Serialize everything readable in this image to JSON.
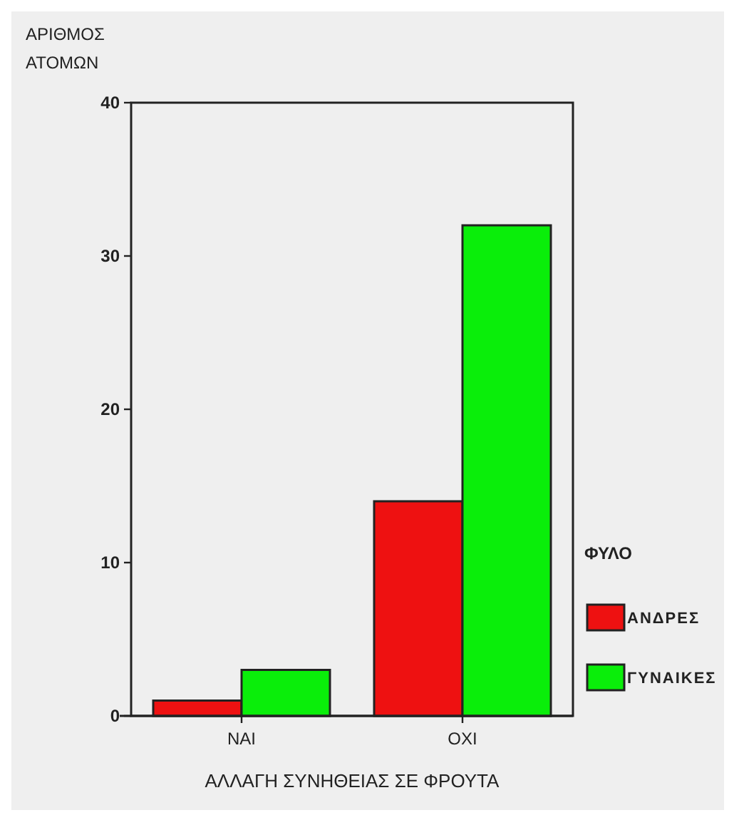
{
  "chart_data": {
    "type": "bar",
    "ylabel": "ΑΡΙΘΜΟΣ\nΑΤΟΜΩΝ",
    "xlabel": "ΑΛΛΑΓΗ ΣΥΝΗΘΕΙΑΣ ΣΕ ΦΡΟΥΤΑ",
    "legend_title": "ΦΥΛΟ",
    "legend": "right",
    "categories": [
      "ΝΑΙ",
      "ΟΧΙ"
    ],
    "series": [
      {
        "name": "ΑΝΔΡΕΣ",
        "color": "#ee1111",
        "values": [
          1,
          14
        ]
      },
      {
        "name": "ΓΥΝΑΙΚΕΣ",
        "color": "#0aee0a",
        "values": [
          3,
          32
        ]
      }
    ],
    "ylim": [
      0,
      40
    ],
    "yticks": [
      0,
      10,
      20,
      30,
      40
    ],
    "grid": false
  }
}
